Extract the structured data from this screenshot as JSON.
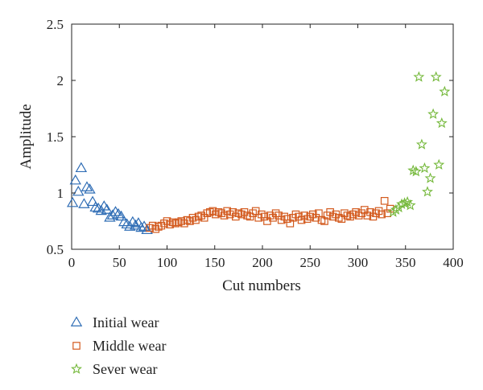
{
  "chart_data": {
    "type": "scatter",
    "title": "",
    "xlabel": "Cut numbers",
    "ylabel": "Amplitude",
    "xlim": [
      0,
      400
    ],
    "ylim": [
      0.5,
      2.5
    ],
    "xticks": [
      0,
      50,
      100,
      150,
      200,
      250,
      300,
      350,
      400
    ],
    "yticks": [
      0.5,
      1,
      1.5,
      2,
      2.5
    ],
    "ytick_labels": [
      "0.5",
      "1",
      "1.5",
      "2",
      "2.5"
    ],
    "grid": false,
    "legend_position": "bottom-left, outside plot",
    "series": [
      {
        "name": "Initial wear",
        "marker": "triangle",
        "color": "#2f6db5",
        "x": [
          1,
          4,
          7,
          10,
          13,
          16,
          19,
          22,
          25,
          28,
          31,
          34,
          37,
          40,
          43,
          46,
          49,
          52,
          55,
          58,
          61,
          64,
          67,
          70,
          73,
          76,
          79
        ],
        "y": [
          0.91,
          1.11,
          1.01,
          1.22,
          0.9,
          1.05,
          1.03,
          0.92,
          0.87,
          0.86,
          0.84,
          0.88,
          0.85,
          0.78,
          0.8,
          0.83,
          0.81,
          0.79,
          0.74,
          0.72,
          0.7,
          0.74,
          0.71,
          0.73,
          0.69,
          0.7,
          0.67
        ]
      },
      {
        "name": "Middle wear",
        "marker": "square",
        "color": "#d35a1e",
        "x": [
          82,
          85,
          88,
          91,
          94,
          97,
          100,
          103,
          106,
          109,
          112,
          115,
          118,
          121,
          124,
          127,
          130,
          133,
          136,
          139,
          142,
          145,
          148,
          151,
          154,
          157,
          160,
          163,
          166,
          169,
          172,
          175,
          178,
          181,
          184,
          187,
          190,
          193,
          196,
          199,
          202,
          205,
          208,
          211,
          214,
          217,
          220,
          223,
          226,
          229,
          232,
          235,
          238,
          241,
          244,
          247,
          250,
          253,
          256,
          259,
          262,
          265,
          268,
          271,
          274,
          277,
          280,
          283,
          286,
          289,
          292,
          295,
          298,
          301,
          304,
          307,
          310,
          313,
          316,
          319,
          322,
          325,
          328,
          331,
          334
        ],
        "y": [
          0.69,
          0.71,
          0.68,
          0.7,
          0.71,
          0.73,
          0.75,
          0.72,
          0.74,
          0.73,
          0.74,
          0.75,
          0.73,
          0.76,
          0.75,
          0.78,
          0.76,
          0.79,
          0.8,
          0.78,
          0.82,
          0.83,
          0.84,
          0.81,
          0.83,
          0.82,
          0.8,
          0.84,
          0.81,
          0.83,
          0.79,
          0.82,
          0.81,
          0.83,
          0.8,
          0.79,
          0.82,
          0.84,
          0.78,
          0.81,
          0.79,
          0.75,
          0.8,
          0.78,
          0.82,
          0.8,
          0.76,
          0.79,
          0.77,
          0.73,
          0.78,
          0.81,
          0.79,
          0.76,
          0.8,
          0.77,
          0.79,
          0.81,
          0.78,
          0.82,
          0.76,
          0.75,
          0.8,
          0.83,
          0.79,
          0.81,
          0.78,
          0.77,
          0.82,
          0.8,
          0.79,
          0.81,
          0.83,
          0.8,
          0.82,
          0.85,
          0.8,
          0.83,
          0.79,
          0.82,
          0.84,
          0.81,
          0.93,
          0.82,
          0.86
        ]
      },
      {
        "name": "Sever wear",
        "marker": "star",
        "color": "#74b83a",
        "x": [
          337,
          340,
          343,
          346,
          349,
          352,
          355,
          358,
          361,
          364,
          367,
          370,
          373,
          376,
          379,
          382,
          385,
          388,
          391
        ],
        "y": [
          0.83,
          0.85,
          0.87,
          0.9,
          0.91,
          0.92,
          0.89,
          1.2,
          1.19,
          2.03,
          1.43,
          1.22,
          1.01,
          1.13,
          1.7,
          2.03,
          1.25,
          1.62,
          1.9
        ]
      }
    ]
  }
}
